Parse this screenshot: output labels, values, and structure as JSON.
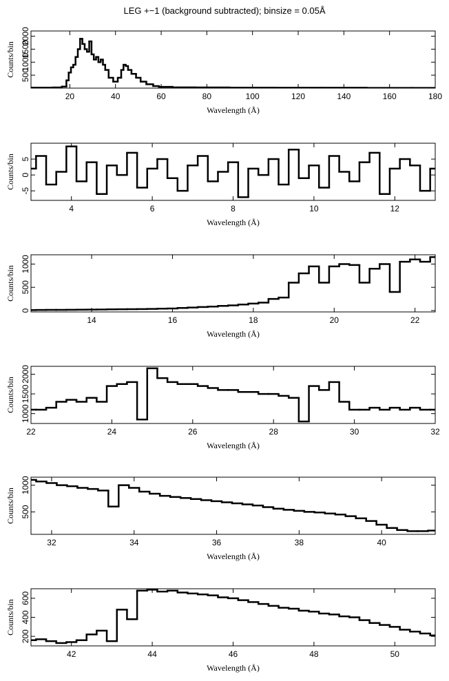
{
  "title": "LEG +−1 (background subtracted); binsize = 0.05Å",
  "chart_data": [
    {
      "type": "step",
      "x_label": "Wavelength (Å)",
      "y_label": "Counts/bin",
      "color": "#000000",
      "x": [
        3,
        10,
        15,
        18,
        19,
        20,
        21,
        22,
        23,
        24,
        25,
        26,
        27,
        28,
        29,
        30,
        31,
        32,
        33,
        34,
        35,
        36,
        38,
        40,
        42,
        43,
        44,
        45,
        46,
        48,
        50,
        52,
        55,
        58,
        60,
        70,
        80,
        100,
        120,
        140,
        160,
        180
      ],
      "values": [
        20,
        20,
        25,
        60,
        300,
        600,
        800,
        900,
        1200,
        1500,
        1900,
        1700,
        1500,
        1400,
        1800,
        1300,
        1100,
        1200,
        1000,
        1100,
        900,
        700,
        400,
        250,
        400,
        700,
        900,
        850,
        700,
        550,
        400,
        250,
        150,
        80,
        50,
        30,
        25,
        20,
        15,
        15,
        10,
        10
      ],
      "xlim": [
        3,
        180
      ],
      "xticks": [
        20,
        40,
        60,
        80,
        100,
        120,
        140,
        160,
        180
      ],
      "ylim": [
        0,
        2200
      ],
      "yticks": [
        500,
        1000,
        1500,
        2000
      ]
    },
    {
      "type": "step",
      "x_label": "Wavelength (Å)",
      "y_label": "Counts/bin",
      "color": "#000000",
      "x": [
        3,
        3.25,
        3.5,
        3.75,
        4,
        4.25,
        4.5,
        4.75,
        5,
        5.25,
        5.5,
        5.75,
        6,
        6.25,
        6.5,
        6.75,
        7,
        7.25,
        7.5,
        7.75,
        8,
        8.25,
        8.5,
        8.75,
        9,
        9.25,
        9.5,
        9.75,
        10,
        10.25,
        10.5,
        10.75,
        11,
        11.25,
        11.5,
        11.75,
        12,
        12.25,
        12.5,
        12.75,
        13
      ],
      "values": [
        2,
        6,
        -3,
        1,
        9,
        -2,
        4,
        -6,
        3,
        0,
        7,
        -4,
        2,
        5,
        -1,
        -5,
        3,
        6,
        -2,
        1,
        4,
        -7,
        2,
        0,
        5,
        -3,
        8,
        -1,
        3,
        -4,
        6,
        1,
        -2,
        4,
        7,
        -6,
        2,
        5,
        3,
        -5,
        2
      ],
      "xlim": [
        3,
        13
      ],
      "xticks": [
        4,
        6,
        8,
        10,
        12
      ],
      "ylim": [
        -8,
        10
      ],
      "yticks": [
        -5,
        0,
        5
      ]
    },
    {
      "type": "step",
      "x_label": "Wavelength (Å)",
      "y_label": "Counts/bin",
      "color": "#000000",
      "x": [
        12.5,
        12.75,
        13,
        13.25,
        13.5,
        13.75,
        14,
        14.25,
        14.5,
        14.75,
        15,
        15.25,
        15.5,
        15.75,
        16,
        16.25,
        16.5,
        16.75,
        17,
        17.25,
        17.5,
        17.75,
        18,
        18.25,
        18.5,
        18.75,
        19,
        19.25,
        19.5,
        19.75,
        20,
        20.25,
        20.5,
        20.75,
        21,
        21.25,
        21.5,
        21.75,
        22,
        22.25,
        22.5
      ],
      "values": [
        10,
        12,
        14,
        15,
        16,
        18,
        20,
        22,
        25,
        28,
        30,
        32,
        35,
        40,
        45,
        55,
        65,
        75,
        85,
        100,
        110,
        130,
        150,
        170,
        250,
        280,
        600,
        800,
        950,
        600,
        950,
        1000,
        980,
        600,
        900,
        1000,
        400,
        1050,
        1100,
        1050,
        1150
      ],
      "xlim": [
        12.5,
        22.5
      ],
      "xticks": [
        14,
        16,
        18,
        20,
        22
      ],
      "ylim": [
        -30,
        1200
      ],
      "yticks": [
        0,
        500,
        1000
      ]
    },
    {
      "type": "step",
      "x_label": "Wavelength (Å)",
      "y_label": "Counts/bin",
      "color": "#000000",
      "x": [
        22,
        22.25,
        22.5,
        22.75,
        23,
        23.25,
        23.5,
        23.75,
        24,
        24.25,
        24.5,
        24.75,
        25,
        25.25,
        25.5,
        25.75,
        26,
        26.25,
        26.5,
        26.75,
        27,
        27.25,
        27.5,
        27.75,
        28,
        28.25,
        28.5,
        28.75,
        29,
        29.25,
        29.5,
        29.75,
        30,
        30.25,
        30.5,
        30.75,
        31,
        31.25,
        31.5,
        31.75,
        32
      ],
      "values": [
        1100,
        1100,
        1150,
        1300,
        1350,
        1300,
        1400,
        1300,
        1700,
        1750,
        1800,
        850,
        2150,
        1900,
        1800,
        1750,
        1750,
        1700,
        1650,
        1600,
        1600,
        1550,
        1550,
        1500,
        1500,
        1450,
        1400,
        800,
        1700,
        1600,
        1800,
        1300,
        1100,
        1100,
        1150,
        1100,
        1150,
        1100,
        1150,
        1100,
        1100
      ],
      "xlim": [
        22,
        32
      ],
      "xticks": [
        22,
        24,
        26,
        28,
        30,
        32
      ],
      "ylim": [
        750,
        2200
      ],
      "yticks": [
        1000,
        1500,
        2000
      ]
    },
    {
      "type": "step",
      "x_label": "Wavelength (Å)",
      "y_label": "Counts/bin",
      "color": "#000000",
      "x": [
        31.5,
        31.75,
        32,
        32.25,
        32.5,
        32.75,
        33,
        33.25,
        33.5,
        33.75,
        34,
        34.25,
        34.5,
        34.75,
        35,
        35.25,
        35.5,
        35.75,
        36,
        36.25,
        36.5,
        36.75,
        37,
        37.25,
        37.5,
        37.75,
        38,
        38.25,
        38.5,
        38.75,
        39,
        39.25,
        39.5,
        39.75,
        40,
        40.25,
        40.5,
        40.75,
        41,
        41.25
      ],
      "values": [
        1100,
        1070,
        1040,
        1000,
        980,
        950,
        930,
        900,
        600,
        1000,
        950,
        880,
        840,
        800,
        780,
        760,
        740,
        720,
        700,
        680,
        660,
        640,
        620,
        590,
        560,
        540,
        520,
        500,
        490,
        470,
        450,
        420,
        380,
        330,
        260,
        200,
        160,
        140,
        140,
        150
      ],
      "xlim": [
        31.5,
        41.3
      ],
      "xticks": [
        32,
        34,
        36,
        38,
        40
      ],
      "ylim": [
        80,
        1150
      ],
      "yticks": [
        500,
        1000
      ]
    },
    {
      "type": "step",
      "x_label": "Wavelength (Å)",
      "y_label": "Counts/bin",
      "color": "#000000",
      "x": [
        41,
        41.25,
        41.5,
        41.75,
        42,
        42.25,
        42.5,
        42.75,
        43,
        43.25,
        43.5,
        43.75,
        44,
        44.25,
        44.5,
        44.75,
        45,
        45.25,
        45.5,
        45.75,
        46,
        46.25,
        46.5,
        46.75,
        47,
        47.25,
        47.5,
        47.75,
        48,
        48.25,
        48.5,
        48.75,
        49,
        49.25,
        49.5,
        49.75,
        50,
        50.25,
        50.5,
        50.75,
        51
      ],
      "values": [
        160,
        170,
        150,
        130,
        140,
        160,
        220,
        260,
        150,
        480,
        380,
        680,
        690,
        670,
        680,
        660,
        650,
        640,
        630,
        610,
        600,
        580,
        560,
        540,
        520,
        500,
        490,
        470,
        460,
        440,
        430,
        410,
        400,
        370,
        340,
        320,
        300,
        270,
        250,
        230,
        210
      ],
      "xlim": [
        41,
        51
      ],
      "xticks": [
        42,
        44,
        46,
        48,
        50
      ],
      "ylim": [
        100,
        700
      ],
      "yticks": [
        200,
        400,
        600
      ]
    }
  ]
}
